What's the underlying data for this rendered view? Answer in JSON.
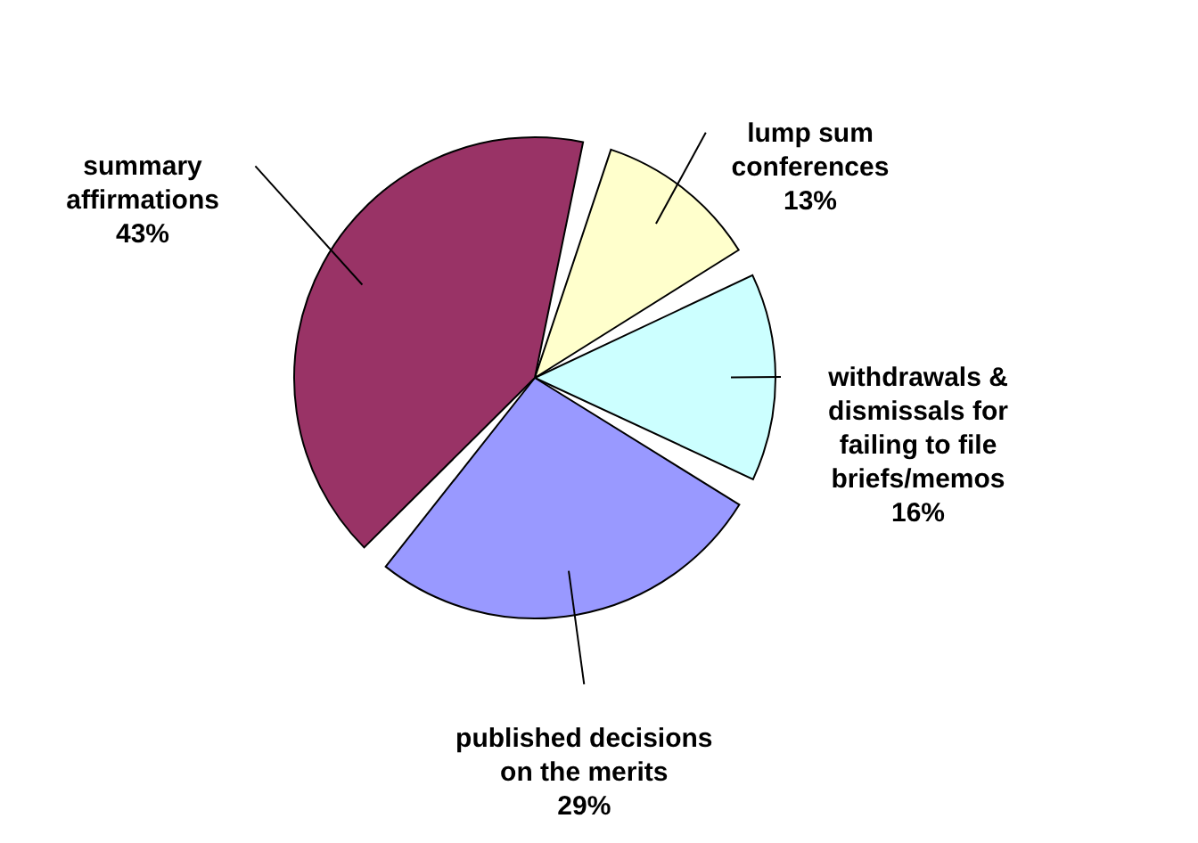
{
  "chart_data": {
    "type": "pie",
    "categories": [
      "lump sum conferences",
      "withdrawals & dismissals for failing to file briefs/memos",
      "published decisions on the merits",
      "summary affirmations"
    ],
    "values": [
      13,
      16,
      29,
      43
    ],
    "value_labels": [
      "13%",
      "16%",
      "29%",
      "43%"
    ],
    "colors": [
      "#ffffcc",
      "#ccffff",
      "#9999ff",
      "#993366"
    ]
  }
}
